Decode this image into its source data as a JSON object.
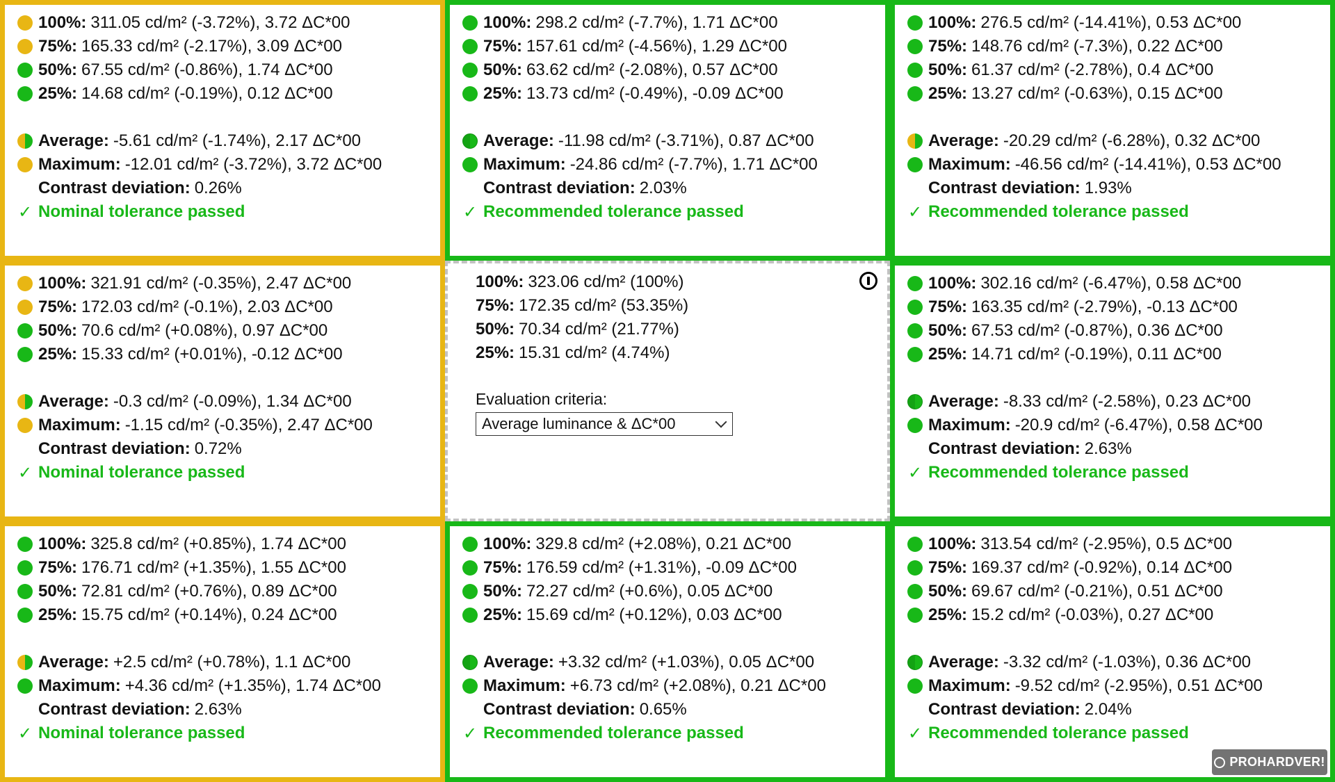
{
  "colors": {
    "green": "#18b818",
    "yellow": "#e8b614",
    "center_border": "#c2c2c2"
  },
  "panels": [
    {
      "id": "p1",
      "border": "yellow",
      "rows": [
        {
          "dot": "yellow",
          "label": "100%:",
          "value": "311.05 cd/m² (-3.72%), 3.72 ΔC*00"
        },
        {
          "dot": "yellow",
          "label": "75%:",
          "value": "165.33 cd/m² (-2.17%), 3.09 ΔC*00"
        },
        {
          "dot": "green",
          "label": "50%:",
          "value": "67.55 cd/m² (-0.86%), 1.74 ΔC*00"
        },
        {
          "dot": "green",
          "label": "25%:",
          "value": "14.68 cd/m² (-0.19%), 0.12 ΔC*00"
        },
        {
          "dot": "half-y",
          "label": "Average:",
          "value": "-5.61 cd/m² (-1.74%), 2.17 ΔC*00",
          "gap": true
        },
        {
          "dot": "yellow",
          "label": "Maximum:",
          "value": "-12.01 cd/m² (-3.72%), 3.72 ΔC*00"
        },
        {
          "dot": "none",
          "label": "Contrast deviation:",
          "value": "0.26%"
        }
      ],
      "result": "Nominal tolerance passed"
    },
    {
      "id": "p2",
      "border": "green",
      "rows": [
        {
          "dot": "green",
          "label": "100%:",
          "value": "298.2 cd/m² (-7.7%), 1.71 ΔC*00"
        },
        {
          "dot": "green",
          "label": "75%:",
          "value": "157.61 cd/m² (-4.56%), 1.29 ΔC*00"
        },
        {
          "dot": "green",
          "label": "50%:",
          "value": "63.62 cd/m² (-2.08%), 0.57 ΔC*00"
        },
        {
          "dot": "green",
          "label": "25%:",
          "value": "13.73 cd/m² (-0.49%), -0.09 ΔC*00"
        },
        {
          "dot": "half-g",
          "label": "Average:",
          "value": "-11.98 cd/m² (-3.71%), 0.87 ΔC*00",
          "gap": true
        },
        {
          "dot": "green",
          "label": "Maximum:",
          "value": "-24.86 cd/m² (-7.7%), 1.71 ΔC*00"
        },
        {
          "dot": "none",
          "label": "Contrast deviation:",
          "value": "2.03%"
        }
      ],
      "result": "Recommended tolerance passed"
    },
    {
      "id": "p3",
      "border": "green",
      "rows": [
        {
          "dot": "green",
          "label": "100%:",
          "value": "276.5 cd/m² (-14.41%), 0.53 ΔC*00"
        },
        {
          "dot": "green",
          "label": "75%:",
          "value": "148.76 cd/m² (-7.3%), 0.22 ΔC*00"
        },
        {
          "dot": "green",
          "label": "50%:",
          "value": "61.37 cd/m² (-2.78%), 0.4 ΔC*00"
        },
        {
          "dot": "green",
          "label": "25%:",
          "value": "13.27 cd/m² (-0.63%), 0.15 ΔC*00"
        },
        {
          "dot": "half-y",
          "label": "Average:",
          "value": "-20.29 cd/m² (-6.28%), 0.32 ΔC*00",
          "gap": true
        },
        {
          "dot": "green",
          "label": "Maximum:",
          "value": "-46.56 cd/m² (-14.41%), 0.53 ΔC*00"
        },
        {
          "dot": "none",
          "label": "Contrast deviation:",
          "value": "1.93%"
        }
      ],
      "result": "Recommended tolerance passed"
    },
    {
      "id": "p4",
      "border": "yellow",
      "rows": [
        {
          "dot": "yellow",
          "label": "100%:",
          "value": "321.91 cd/m² (-0.35%), 2.47 ΔC*00"
        },
        {
          "dot": "yellow",
          "label": "75%:",
          "value": "172.03 cd/m² (-0.1%), 2.03 ΔC*00"
        },
        {
          "dot": "green",
          "label": "50%:",
          "value": "70.6 cd/m² (+0.08%), 0.97 ΔC*00"
        },
        {
          "dot": "green",
          "label": "25%:",
          "value": "15.33 cd/m² (+0.01%), -0.12 ΔC*00"
        },
        {
          "dot": "half-y",
          "label": "Average:",
          "value": "-0.3 cd/m² (-0.09%), 1.34 ΔC*00",
          "gap": true
        },
        {
          "dot": "yellow",
          "label": "Maximum:",
          "value": "-1.15 cd/m² (-0.35%), 2.47 ΔC*00"
        },
        {
          "dot": "none",
          "label": "Contrast deviation:",
          "value": "0.72%"
        }
      ],
      "result": "Nominal tolerance passed"
    },
    {
      "id": "p6",
      "border": "green",
      "rows": [
        {
          "dot": "green",
          "label": "100%:",
          "value": "302.16 cd/m² (-6.47%), 0.58 ΔC*00"
        },
        {
          "dot": "green",
          "label": "75%:",
          "value": "163.35 cd/m² (-2.79%), -0.13 ΔC*00"
        },
        {
          "dot": "green",
          "label": "50%:",
          "value": "67.53 cd/m² (-0.87%), 0.36 ΔC*00"
        },
        {
          "dot": "green",
          "label": "25%:",
          "value": "14.71 cd/m² (-0.19%), 0.11 ΔC*00"
        },
        {
          "dot": "half-g",
          "label": "Average:",
          "value": "-8.33 cd/m² (-2.58%), 0.23 ΔC*00",
          "gap": true
        },
        {
          "dot": "green",
          "label": "Maximum:",
          "value": "-20.9 cd/m² (-6.47%), 0.58 ΔC*00"
        },
        {
          "dot": "none",
          "label": "Contrast deviation:",
          "value": "2.63%"
        }
      ],
      "result": "Recommended tolerance passed"
    },
    {
      "id": "p7",
      "border": "yellow",
      "rows": [
        {
          "dot": "green",
          "label": "100%:",
          "value": "325.8 cd/m² (+0.85%), 1.74 ΔC*00"
        },
        {
          "dot": "green",
          "label": "75%:",
          "value": "176.71 cd/m² (+1.35%), 1.55 ΔC*00"
        },
        {
          "dot": "green",
          "label": "50%:",
          "value": "72.81 cd/m² (+0.76%), 0.89 ΔC*00"
        },
        {
          "dot": "green",
          "label": "25%:",
          "value": "15.75 cd/m² (+0.14%), 0.24 ΔC*00"
        },
        {
          "dot": "half-y",
          "label": "Average:",
          "value": "+2.5 cd/m² (+0.78%), 1.1 ΔC*00",
          "gap": true
        },
        {
          "dot": "green",
          "label": "Maximum:",
          "value": "+4.36 cd/m² (+1.35%), 1.74 ΔC*00"
        },
        {
          "dot": "none",
          "label": "Contrast deviation:",
          "value": "2.63%"
        }
      ],
      "result": "Nominal tolerance passed"
    },
    {
      "id": "p8",
      "border": "green",
      "rows": [
        {
          "dot": "green",
          "label": "100%:",
          "value": "329.8 cd/m² (+2.08%), 0.21 ΔC*00"
        },
        {
          "dot": "green",
          "label": "75%:",
          "value": "176.59 cd/m² (+1.31%), -0.09 ΔC*00"
        },
        {
          "dot": "green",
          "label": "50%:",
          "value": "72.27 cd/m² (+0.6%), 0.05 ΔC*00"
        },
        {
          "dot": "green",
          "label": "25%:",
          "value": "15.69 cd/m² (+0.12%), 0.03 ΔC*00"
        },
        {
          "dot": "half-g",
          "label": "Average:",
          "value": "+3.32 cd/m² (+1.03%), 0.05 ΔC*00",
          "gap": true
        },
        {
          "dot": "green",
          "label": "Maximum:",
          "value": "+6.73 cd/m² (+2.08%), 0.21 ΔC*00"
        },
        {
          "dot": "none",
          "label": "Contrast deviation:",
          "value": "0.65%"
        }
      ],
      "result": "Recommended tolerance passed"
    },
    {
      "id": "p9",
      "border": "green",
      "rows": [
        {
          "dot": "green",
          "label": "100%:",
          "value": "313.54 cd/m² (-2.95%), 0.5 ΔC*00"
        },
        {
          "dot": "green",
          "label": "75%:",
          "value": "169.37 cd/m² (-0.92%), 0.14 ΔC*00"
        },
        {
          "dot": "green",
          "label": "50%:",
          "value": "69.67 cd/m² (-0.21%), 0.51 ΔC*00"
        },
        {
          "dot": "green",
          "label": "25%:",
          "value": "15.2 cd/m² (-0.03%), 0.27 ΔC*00"
        },
        {
          "dot": "half-g",
          "label": "Average:",
          "value": "-3.32 cd/m² (-1.03%), 0.36 ΔC*00",
          "gap": true
        },
        {
          "dot": "green",
          "label": "Maximum:",
          "value": "-9.52 cd/m² (-2.95%), 0.51 ΔC*00"
        },
        {
          "dot": "none",
          "label": "Contrast deviation:",
          "value": "2.04%"
        }
      ],
      "result": "Recommended tolerance passed"
    }
  ],
  "center": {
    "rows": [
      {
        "label": "100%:",
        "value": "323.06 cd/m² (100%)"
      },
      {
        "label": "75%:",
        "value": "172.35 cd/m² (53.35%)"
      },
      {
        "label": "50%:",
        "value": "70.34 cd/m² (21.77%)"
      },
      {
        "label": "25%:",
        "value": "15.31 cd/m² (4.74%)"
      }
    ],
    "criteria_label": "Evaluation criteria:",
    "criteria_value": "Average luminance & ΔC*00",
    "power_icon": "power-icon"
  },
  "check_mark": "✓",
  "logo_text": "PROHARDVER!"
}
